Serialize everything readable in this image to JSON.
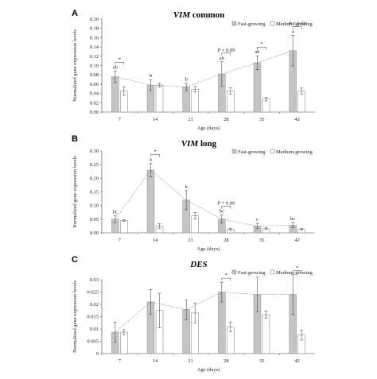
{
  "chart_data": [
    {
      "type": "bar",
      "panel": "A",
      "title": "VIM common",
      "title_italic": "VIM",
      "title_rest": " common",
      "xlabel": "Age (days)",
      "ylabel": "Normalized gene expression levels",
      "categories": [
        "7",
        "14",
        "21",
        "28",
        "35",
        "42"
      ],
      "ylim": [
        0,
        0.2
      ],
      "yticks": [
        "0.00",
        "0.02",
        "0.04",
        "0.06",
        "0.08",
        "0.10",
        "0.12",
        "0.14",
        "0.16",
        "0.18",
        "0.20"
      ],
      "ytick_values": [
        0,
        0.02,
        0.04,
        0.06,
        0.08,
        0.1,
        0.12,
        0.14,
        0.16,
        0.18,
        0.2
      ],
      "legend": [
        "Fast-growing",
        "Medium-growing"
      ],
      "series": [
        {
          "name": "Fast-growing",
          "values": [
            0.076,
            0.058,
            0.054,
            0.082,
            0.106,
            0.132
          ],
          "errors": [
            0.012,
            0.012,
            0.008,
            0.026,
            0.015,
            0.033
          ]
        },
        {
          "name": "Medium-growing",
          "values": [
            0.045,
            0.058,
            0.049,
            0.045,
            0.028,
            0.045
          ],
          "errors": [
            0.009,
            0.004,
            0.006,
            0.007,
            0.004,
            0.007
          ]
        }
      ],
      "bar_letters": [
        "ab",
        "b",
        "b",
        "ab",
        "ab",
        "a"
      ],
      "annotations": [
        {
          "cat": 0,
          "text": "*"
        },
        {
          "cat": 3,
          "text": "P = 0.09"
        },
        {
          "cat": 4,
          "text": "*"
        },
        {
          "cat": 5,
          "text": "P = 0.09"
        }
      ]
    },
    {
      "type": "bar",
      "panel": "B",
      "title": "VIM long",
      "title_italic": "VIM",
      "title_rest": " long",
      "xlabel": "Age (days)",
      "ylabel": "Normalized gene expression levels",
      "categories": [
        "7",
        "14",
        "21",
        "28",
        "35",
        "42"
      ],
      "ylim": [
        0,
        0.3
      ],
      "yticks": [
        "0.00",
        "0.05",
        "0.10",
        "0.15",
        "0.20",
        "0.25",
        "0.30"
      ],
      "ytick_values": [
        0,
        0.05,
        0.1,
        0.15,
        0.2,
        0.25,
        0.3
      ],
      "legend": [
        "Fast-growing",
        "Medium-growing"
      ],
      "series": [
        {
          "name": "Fast-growing",
          "values": [
            0.05,
            0.23,
            0.12,
            0.05,
            0.025,
            0.028
          ],
          "errors": [
            0.012,
            0.025,
            0.035,
            0.015,
            0.01,
            0.01
          ]
        },
        {
          "name": "Medium-growing",
          "values": [
            0.045,
            0.025,
            0.062,
            0.013,
            0.015,
            0.013
          ],
          "errors": [
            0.003,
            0.008,
            0.012,
            0.004,
            0.003,
            0.003
          ]
        }
      ],
      "bar_letters": [
        "bc",
        "a",
        "b",
        "bc",
        "c",
        "bc"
      ],
      "annotations": [
        {
          "cat": 1,
          "text": "*"
        },
        {
          "cat": 3,
          "text": "P = 0.06"
        }
      ]
    },
    {
      "type": "bar",
      "panel": "C",
      "title": "DES",
      "title_italic": "DES",
      "title_rest": "",
      "xlabel": "Age (days)",
      "ylabel": "Normalized gene expression levels",
      "categories": [
        "7",
        "14",
        "21",
        "28",
        "35",
        "42"
      ],
      "ylim": [
        0,
        0.03
      ],
      "yticks": [
        "0",
        "0.005",
        "0.01",
        "0.015",
        "0.02",
        "0.025",
        "0.03"
      ],
      "ytick_values": [
        0,
        0.005,
        0.01,
        0.015,
        0.02,
        0.025,
        0.03
      ],
      "legend": [
        "Fast-growing",
        "Medium-growing"
      ],
      "series": [
        {
          "name": "Fast-growing",
          "values": [
            0.0087,
            0.021,
            0.0178,
            0.025,
            0.024,
            0.024
          ],
          "errors": [
            0.004,
            0.005,
            0.004,
            0.004,
            0.007,
            0.008
          ]
        },
        {
          "name": "Medium-growing",
          "values": [
            0.0087,
            0.0175,
            0.0165,
            0.0108,
            0.0158,
            0.0075
          ],
          "errors": [
            0.001,
            0.007,
            0.004,
            0.002,
            0.0015,
            0.002
          ]
        }
      ],
      "bar_letters": [],
      "annotations": [
        {
          "cat": 3,
          "text": "*"
        },
        {
          "cat": 5,
          "text": "*"
        }
      ]
    }
  ]
}
